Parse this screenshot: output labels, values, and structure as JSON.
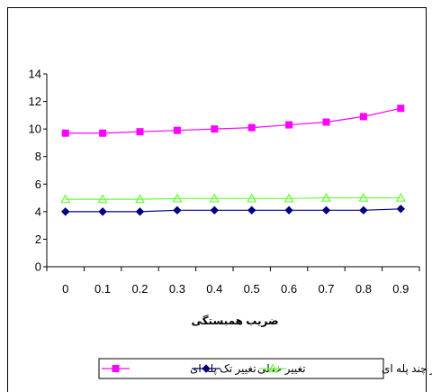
{
  "chart_data": {
    "type": "line",
    "title": "",
    "xlabel": "ضریب همبستگی",
    "ylabel": "",
    "categories": [
      "0",
      "0.1",
      "0.2",
      "0.3",
      "0.4",
      "0.5",
      "0.6",
      "0.7",
      "0.8",
      "0.9"
    ],
    "ylim": [
      0,
      14
    ],
    "yticks": [
      "0",
      "2",
      "4",
      "6",
      "8",
      "10",
      "12",
      "14"
    ],
    "grid": false,
    "legend_position": "bottom",
    "series": [
      {
        "name": "تغییر تک پله ای",
        "color": "#ff00ff",
        "marker": "square",
        "values": [
          9.7,
          9.7,
          9.8,
          9.9,
          10.0,
          10.1,
          10.3,
          10.5,
          10.9,
          11.5
        ]
      },
      {
        "name": "تغییر خطی",
        "color": "#000080",
        "marker": "diamond",
        "values": [
          4.0,
          4.0,
          4.0,
          4.1,
          4.1,
          4.1,
          4.1,
          4.1,
          4.1,
          4.2
        ]
      },
      {
        "name": "تغییر چند پله ای",
        "color": "#66ff33",
        "marker": "triangle",
        "values": [
          4.9,
          4.9,
          4.9,
          4.95,
          4.95,
          4.95,
          4.95,
          5.0,
          5.0,
          5.0
        ]
      }
    ]
  }
}
